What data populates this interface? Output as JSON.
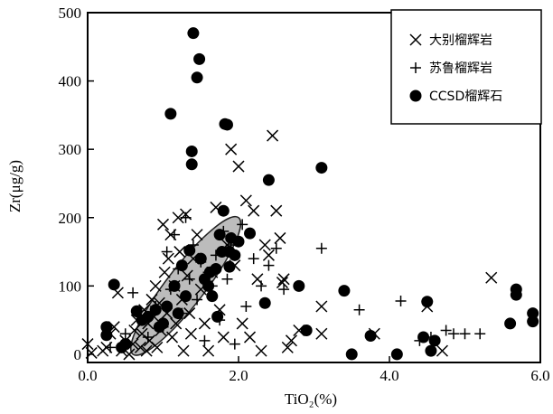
{
  "chart_data": {
    "type": "scatter",
    "xlabel": "TiO₂(%)",
    "ylabel": "Zr(μg/g)",
    "xlim": [
      0,
      6
    ],
    "ylim": [
      -12,
      500
    ],
    "xticks": [
      0,
      2,
      4,
      6
    ],
    "xtick_labels": [
      "0.0",
      "2.0",
      "4.0",
      "6.0"
    ],
    "yticks": [
      0,
      100,
      200,
      300,
      400,
      500
    ],
    "ytick_labels": [
      "0",
      "100",
      "200",
      "300",
      "400",
      "500"
    ],
    "legend_position": "top-right",
    "grid": false,
    "shaded_region": {
      "shape": "ellipse",
      "center": [
        1.3,
        100
      ],
      "through_points": [
        [
          0.6,
          0
        ],
        [
          2.0,
          200
        ]
      ],
      "fill": "#bcbcbc"
    },
    "series": [
      {
        "name": "大别榴辉岩",
        "marker": "x",
        "points": [
          [
            0.0,
            15
          ],
          [
            0.05,
            2
          ],
          [
            0.2,
            5
          ],
          [
            0.25,
            10
          ],
          [
            0.3,
            30
          ],
          [
            0.35,
            40
          ],
          [
            0.4,
            90
          ],
          [
            0.45,
            5
          ],
          [
            0.5,
            20
          ],
          [
            0.55,
            0
          ],
          [
            0.6,
            15
          ],
          [
            0.62,
            35
          ],
          [
            0.65,
            50
          ],
          [
            0.7,
            10
          ],
          [
            0.72,
            30
          ],
          [
            0.75,
            65
          ],
          [
            0.78,
            5
          ],
          [
            0.8,
            45
          ],
          [
            0.82,
            20
          ],
          [
            0.85,
            80
          ],
          [
            0.88,
            55
          ],
          [
            0.9,
            100
          ],
          [
            0.92,
            10
          ],
          [
            0.95,
            75
          ],
          [
            0.97,
            35
          ],
          [
            1.0,
            190
          ],
          [
            1.02,
            120
          ],
          [
            1.05,
            60
          ],
          [
            1.07,
            140
          ],
          [
            1.1,
            175
          ],
          [
            1.12,
            25
          ],
          [
            1.15,
            100
          ],
          [
            1.17,
            45
          ],
          [
            1.2,
            200
          ],
          [
            1.22,
            150
          ],
          [
            1.25,
            80
          ],
          [
            1.27,
            5
          ],
          [
            1.3,
            205
          ],
          [
            1.32,
            115
          ],
          [
            1.35,
            60
          ],
          [
            1.37,
            30
          ],
          [
            1.4,
            140
          ],
          [
            1.45,
            175
          ],
          [
            1.5,
            95
          ],
          [
            1.55,
            45
          ],
          [
            1.6,
            5
          ],
          [
            1.65,
            120
          ],
          [
            1.7,
            215
          ],
          [
            1.75,
            65
          ],
          [
            1.8,
            25
          ],
          [
            1.85,
            160
          ],
          [
            1.9,
            300
          ],
          [
            1.95,
            130
          ],
          [
            2.0,
            275
          ],
          [
            2.05,
            45
          ],
          [
            2.1,
            225
          ],
          [
            2.15,
            25
          ],
          [
            2.2,
            210
          ],
          [
            2.25,
            110
          ],
          [
            2.3,
            5
          ],
          [
            2.35,
            160
          ],
          [
            2.4,
            145
          ],
          [
            2.45,
            320
          ],
          [
            2.5,
            210
          ],
          [
            2.55,
            170
          ],
          [
            2.58,
            105
          ],
          [
            2.6,
            110
          ],
          [
            2.65,
            10
          ],
          [
            2.7,
            20
          ],
          [
            2.8,
            35
          ],
          [
            3.1,
            70
          ],
          [
            3.1,
            30
          ],
          [
            3.8,
            30
          ],
          [
            4.5,
            70
          ],
          [
            4.7,
            5
          ],
          [
            5.35,
            112
          ]
        ]
      },
      {
        "name": "苏鲁榴辉岩",
        "marker": "+",
        "points": [
          [
            0.3,
            10
          ],
          [
            0.5,
            30
          ],
          [
            0.6,
            90
          ],
          [
            0.7,
            55
          ],
          [
            0.8,
            25
          ],
          [
            0.9,
            70
          ],
          [
            1.0,
            40
          ],
          [
            1.05,
            150
          ],
          [
            1.1,
            95
          ],
          [
            1.15,
            175
          ],
          [
            1.2,
            125
          ],
          [
            1.25,
            60
          ],
          [
            1.3,
            200
          ],
          [
            1.35,
            110
          ],
          [
            1.4,
            160
          ],
          [
            1.45,
            80
          ],
          [
            1.5,
            135
          ],
          [
            1.55,
            20
          ],
          [
            1.6,
            120
          ],
          [
            1.65,
            100
          ],
          [
            1.7,
            145
          ],
          [
            1.75,
            50
          ],
          [
            1.8,
            180
          ],
          [
            1.85,
            110
          ],
          [
            1.9,
            160
          ],
          [
            1.95,
            15
          ],
          [
            2.0,
            165
          ],
          [
            2.05,
            190
          ],
          [
            2.1,
            70
          ],
          [
            2.2,
            140
          ],
          [
            2.3,
            100
          ],
          [
            2.4,
            130
          ],
          [
            2.5,
            155
          ],
          [
            2.6,
            95
          ],
          [
            3.1,
            155
          ],
          [
            3.6,
            65
          ],
          [
            4.15,
            78
          ],
          [
            4.4,
            20
          ],
          [
            4.55,
            25
          ],
          [
            4.75,
            35
          ],
          [
            4.85,
            30
          ],
          [
            5.0,
            30
          ],
          [
            5.2,
            30
          ]
        ]
      },
      {
        "name": "CCSD榴辉石",
        "marker": "o",
        "points": [
          [
            0.25,
            40
          ],
          [
            0.25,
            28
          ],
          [
            0.35,
            102
          ],
          [
            0.45,
            10
          ],
          [
            0.5,
            15
          ],
          [
            0.65,
            63
          ],
          [
            0.72,
            50
          ],
          [
            0.8,
            55
          ],
          [
            0.9,
            65
          ],
          [
            0.95,
            40
          ],
          [
            1.0,
            45
          ],
          [
            1.05,
            70
          ],
          [
            1.1,
            352
          ],
          [
            1.15,
            100
          ],
          [
            1.2,
            60
          ],
          [
            1.25,
            130
          ],
          [
            1.3,
            85
          ],
          [
            1.35,
            152
          ],
          [
            1.38,
            297
          ],
          [
            1.38,
            278
          ],
          [
            1.4,
            470
          ],
          [
            1.45,
            405
          ],
          [
            1.48,
            432
          ],
          [
            1.5,
            140
          ],
          [
            1.55,
            110
          ],
          [
            1.6,
            100
          ],
          [
            1.62,
            120
          ],
          [
            1.65,
            85
          ],
          [
            1.7,
            125
          ],
          [
            1.72,
            55
          ],
          [
            1.75,
            175
          ],
          [
            1.78,
            150
          ],
          [
            1.8,
            210
          ],
          [
            1.82,
            337
          ],
          [
            1.85,
            336
          ],
          [
            1.88,
            150
          ],
          [
            1.88,
            128
          ],
          [
            1.9,
            170
          ],
          [
            1.95,
            145
          ],
          [
            2.0,
            165
          ],
          [
            2.15,
            177
          ],
          [
            2.35,
            75
          ],
          [
            2.4,
            255
          ],
          [
            2.8,
            100
          ],
          [
            2.9,
            35
          ],
          [
            3.1,
            273
          ],
          [
            3.4,
            93
          ],
          [
            3.5,
            0
          ],
          [
            3.75,
            27
          ],
          [
            4.1,
            0
          ],
          [
            4.45,
            25
          ],
          [
            4.5,
            77
          ],
          [
            4.55,
            5
          ],
          [
            4.6,
            20
          ],
          [
            5.6,
            45
          ],
          [
            5.68,
            95
          ],
          [
            5.68,
            87
          ],
          [
            5.9,
            60
          ],
          [
            5.9,
            48
          ]
        ]
      }
    ]
  }
}
